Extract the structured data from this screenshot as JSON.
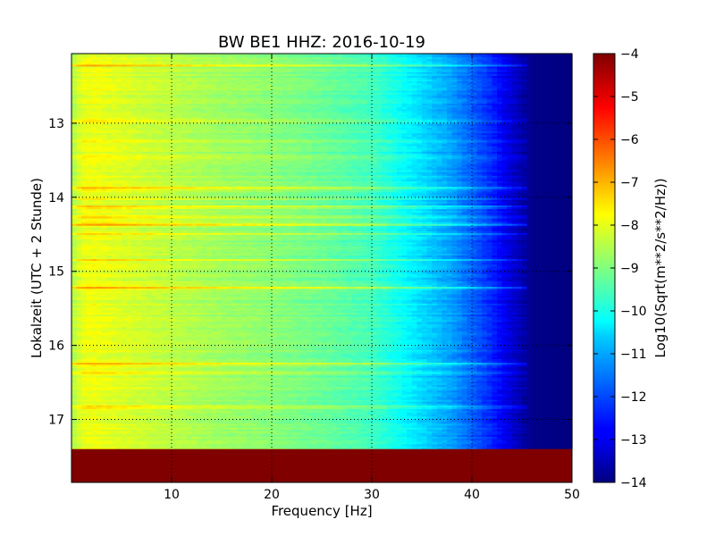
{
  "chart_data": {
    "type": "heatmap",
    "title": "BW BE1 HHZ: 2016-10-19",
    "xlabel": "Frequency [Hz]",
    "ylabel": "Lokalzeit (UTC + 2 Stunde)",
    "xlim": [
      0,
      50
    ],
    "ylim": [
      12.06,
      17.85
    ],
    "y_inverted": true,
    "x_ticks": [
      10,
      20,
      30,
      40,
      50
    ],
    "y_ticks": [
      13,
      14,
      15,
      16,
      17
    ],
    "grid": true,
    "colormap": "jet",
    "colorbar": {
      "label": "Log10(Sqrt(m**2/s**2/Hz))",
      "min": -14,
      "max": -4,
      "ticks": [
        -4,
        -5,
        -6,
        -7,
        -8,
        -9,
        -10,
        -11,
        -12,
        -13,
        -14
      ]
    },
    "data_end_time": 17.4,
    "after_end_value": -4,
    "frequency_profile": [
      {
        "frequency": 0,
        "value": -8.6
      },
      {
        "frequency": 1,
        "value": -8.0
      },
      {
        "frequency": 2,
        "value": -7.9
      },
      {
        "frequency": 5,
        "value": -8.1
      },
      {
        "frequency": 10,
        "value": -8.4
      },
      {
        "frequency": 15,
        "value": -8.7
      },
      {
        "frequency": 20,
        "value": -8.9
      },
      {
        "frequency": 25,
        "value": -9.2
      },
      {
        "frequency": 30,
        "value": -9.6
      },
      {
        "frequency": 33,
        "value": -10.2
      },
      {
        "frequency": 35,
        "value": -10.6
      },
      {
        "frequency": 38,
        "value": -11.2
      },
      {
        "frequency": 40,
        "value": -11.8
      },
      {
        "frequency": 42,
        "value": -12.4
      },
      {
        "frequency": 44,
        "value": -13.2
      },
      {
        "frequency": 46,
        "value": -13.9
      },
      {
        "frequency": 50,
        "value": -14.0
      }
    ],
    "time_bands": [
      {
        "time": 12.22,
        "offset": 1.0
      },
      {
        "time": 12.97,
        "offset": 0.5
      },
      {
        "time": 13.24,
        "offset": 0.7
      },
      {
        "time": 13.47,
        "offset": 0.5
      },
      {
        "time": 13.88,
        "offset": 1.2
      },
      {
        "time": 14.02,
        "offset": 0.6
      },
      {
        "time": 14.13,
        "offset": 1.0
      },
      {
        "time": 14.26,
        "offset": 0.8
      },
      {
        "time": 14.37,
        "offset": 1.1
      },
      {
        "time": 14.5,
        "offset": 0.7
      },
      {
        "time": 14.85,
        "offset": 0.7
      },
      {
        "time": 15.22,
        "offset": 1.2
      },
      {
        "time": 16.25,
        "offset": 1.0
      },
      {
        "time": 16.37,
        "offset": 0.5
      },
      {
        "time": 16.83,
        "offset": 0.6
      }
    ]
  }
}
